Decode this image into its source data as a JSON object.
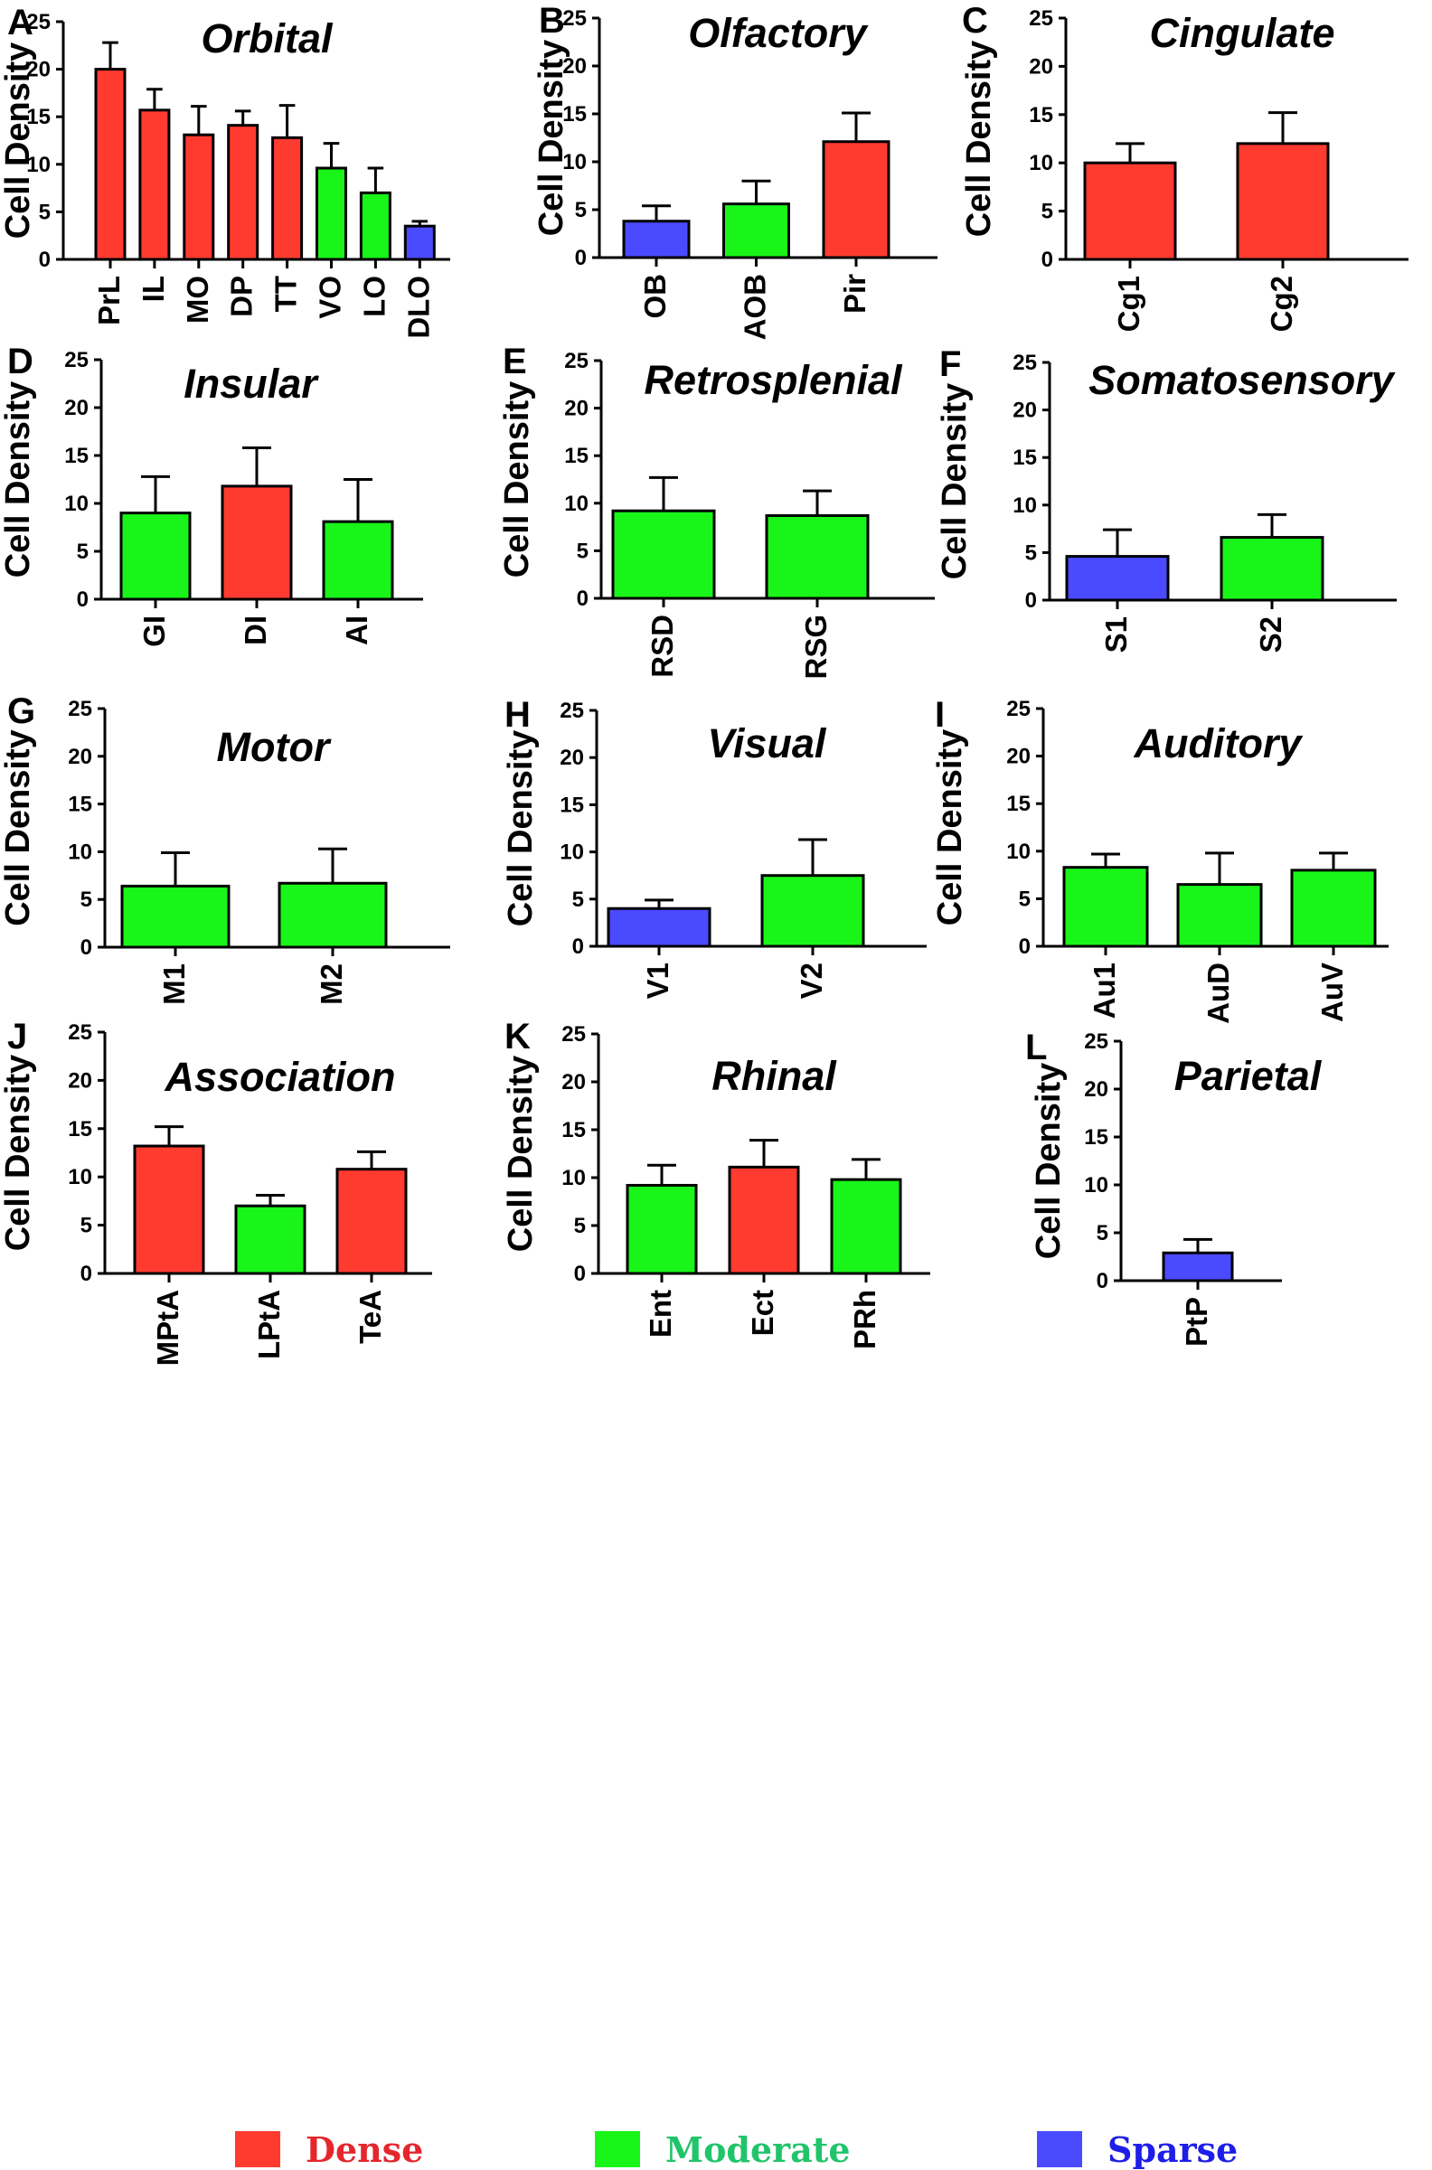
{
  "colors": {
    "Dense": "#ff3b30",
    "Moderate": "#19f519",
    "Sparse": "#4a4aff",
    "Dense_text": "#e4262d",
    "Moderate_text": "#21c46a",
    "Sparse_text": "#1e1ee8"
  },
  "legend": [
    {
      "label": "Dense",
      "category": "Dense"
    },
    {
      "label": "Moderate",
      "category": "Moderate"
    },
    {
      "label": "Sparse",
      "category": "Sparse"
    }
  ],
  "chart_data": [
    {
      "panel": "A",
      "type": "bar",
      "title": "Orbital",
      "ylabel": "Cell Density",
      "ylim": [
        0,
        25
      ],
      "yticks": [
        0,
        5,
        10,
        15,
        20,
        25
      ],
      "categories": [
        "PrL",
        "IL",
        "MO",
        "DP",
        "TT",
        "VO",
        "LO",
        "DLO"
      ],
      "values": [
        20.0,
        15.7,
        13.1,
        14.1,
        12.8,
        9.6,
        7.0,
        3.5
      ],
      "errors": [
        2.8,
        2.2,
        3.0,
        1.5,
        3.4,
        2.6,
        2.6,
        0.5
      ],
      "classes": [
        "Dense",
        "Dense",
        "Dense",
        "Dense",
        "Dense",
        "Moderate",
        "Moderate",
        "Sparse"
      ]
    },
    {
      "panel": "B",
      "type": "bar",
      "title": "Olfactory",
      "ylabel": "Cell Density",
      "ylim": [
        0,
        25
      ],
      "yticks": [
        0,
        5,
        10,
        15,
        20,
        25
      ],
      "categories": [
        "OB",
        "AOB",
        "Pir"
      ],
      "values": [
        3.8,
        5.6,
        12.1
      ],
      "errors": [
        1.6,
        2.4,
        3.0
      ],
      "classes": [
        "Sparse",
        "Moderate",
        "Dense"
      ]
    },
    {
      "panel": "C",
      "type": "bar",
      "title": "Cingulate",
      "ylabel": "Cell Density",
      "ylim": [
        0,
        25
      ],
      "yticks": [
        0,
        5,
        10,
        15,
        20,
        25
      ],
      "categories": [
        "Cg1",
        "Cg2"
      ],
      "values": [
        10.0,
        12.0
      ],
      "errors": [
        2.0,
        3.2
      ],
      "classes": [
        "Dense",
        "Dense"
      ]
    },
    {
      "panel": "D",
      "type": "bar",
      "title": "Insular",
      "ylabel": "Cell Density",
      "ylim": [
        0,
        25
      ],
      "yticks": [
        0,
        5,
        10,
        15,
        20,
        25
      ],
      "categories": [
        "GI",
        "DI",
        "AI"
      ],
      "values": [
        9.0,
        11.8,
        8.1
      ],
      "errors": [
        3.8,
        4.0,
        4.4
      ],
      "classes": [
        "Moderate",
        "Dense",
        "Moderate"
      ]
    },
    {
      "panel": "E",
      "type": "bar",
      "title": "Retrosplenial",
      "ylabel": "Cell Density",
      "ylim": [
        0,
        25
      ],
      "yticks": [
        0,
        5,
        10,
        15,
        20,
        25
      ],
      "categories": [
        "RSD",
        "RSG"
      ],
      "values": [
        9.2,
        8.7
      ],
      "errors": [
        3.5,
        2.6
      ],
      "classes": [
        "Moderate",
        "Moderate"
      ]
    },
    {
      "panel": "F",
      "type": "bar",
      "title": "Somatosensory",
      "ylabel": "Cell Density",
      "ylim": [
        0,
        25
      ],
      "yticks": [
        0,
        5,
        10,
        15,
        20,
        25
      ],
      "categories": [
        "S1",
        "S2"
      ],
      "values": [
        4.6,
        6.6
      ],
      "errors": [
        2.8,
        2.4
      ],
      "classes": [
        "Sparse",
        "Moderate"
      ]
    },
    {
      "panel": "G",
      "type": "bar",
      "title": "Motor",
      "ylabel": "Cell Density",
      "ylim": [
        0,
        25
      ],
      "yticks": [
        0,
        5,
        10,
        15,
        20,
        25
      ],
      "categories": [
        "M1",
        "M2"
      ],
      "values": [
        6.4,
        6.7
      ],
      "errors": [
        3.5,
        3.6
      ],
      "classes": [
        "Moderate",
        "Moderate"
      ]
    },
    {
      "panel": "H",
      "type": "bar",
      "title": "Visual",
      "ylabel": "Cell Density",
      "ylim": [
        0,
        25
      ],
      "yticks": [
        0,
        5,
        10,
        15,
        20,
        25
      ],
      "categories": [
        "V1",
        "V2"
      ],
      "values": [
        4.0,
        7.5
      ],
      "errors": [
        0.9,
        3.8
      ],
      "classes": [
        "Sparse",
        "Moderate"
      ]
    },
    {
      "panel": "I",
      "type": "bar",
      "title": "Auditory",
      "ylabel": "Cell Density",
      "ylim": [
        0,
        25
      ],
      "yticks": [
        0,
        5,
        10,
        15,
        20,
        25
      ],
      "categories": [
        "Au1",
        "AuD",
        "AuV"
      ],
      "values": [
        8.3,
        6.5,
        8.0
      ],
      "errors": [
        1.4,
        3.3,
        1.8
      ],
      "classes": [
        "Moderate",
        "Moderate",
        "Moderate"
      ]
    },
    {
      "panel": "J",
      "type": "bar",
      "title": "Association",
      "ylabel": "Cell Density",
      "ylim": [
        0,
        25
      ],
      "yticks": [
        0,
        5,
        10,
        15,
        20,
        25
      ],
      "categories": [
        "MPtA",
        "LPtA",
        "TeA"
      ],
      "values": [
        13.2,
        7.0,
        10.8
      ],
      "errors": [
        2.0,
        1.1,
        1.8
      ],
      "classes": [
        "Dense",
        "Moderate",
        "Dense"
      ]
    },
    {
      "panel": "K",
      "type": "bar",
      "title": "Rhinal",
      "ylabel": "Cell Density",
      "ylim": [
        0,
        25
      ],
      "yticks": [
        0,
        5,
        10,
        15,
        20,
        25
      ],
      "categories": [
        "Ent",
        "Ect",
        "PRh"
      ],
      "values": [
        9.2,
        11.1,
        9.8
      ],
      "errors": [
        2.1,
        2.8,
        2.1
      ],
      "classes": [
        "Moderate",
        "Dense",
        "Moderate"
      ]
    },
    {
      "panel": "L",
      "type": "bar",
      "title": "Parietal",
      "ylabel": "Cell Density",
      "ylim": [
        0,
        25
      ],
      "yticks": [
        0,
        5,
        10,
        15,
        20,
        25
      ],
      "categories": [
        "PtP"
      ],
      "values": [
        2.9
      ],
      "errors": [
        1.4
      ],
      "classes": [
        "Sparse"
      ]
    }
  ]
}
